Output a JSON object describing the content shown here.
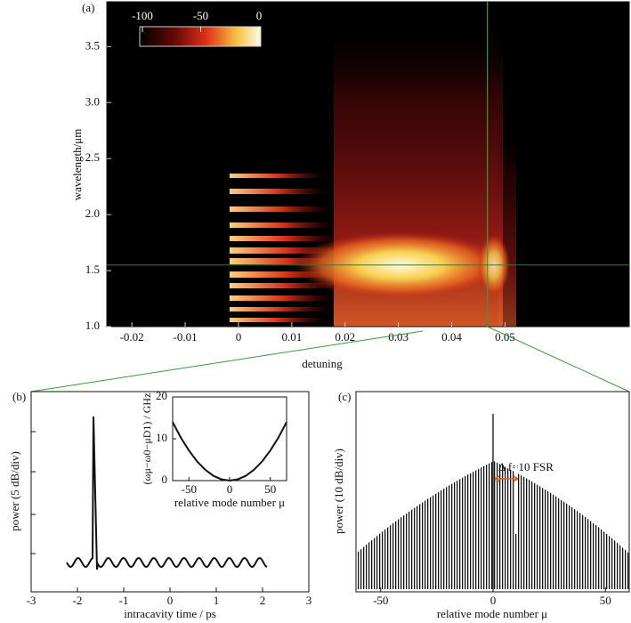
{
  "chart_data": [
    {
      "type": "heatmap",
      "panel_label": "(a)",
      "x_label": "detuning",
      "y_label": "wavelength/μm",
      "xlim": [
        -0.0247,
        0.0733
      ],
      "xticks": [
        -0.02,
        -0.01,
        0,
        0.01,
        0.02,
        0.03,
        0.04,
        0.05
      ],
      "ylim": [
        1.0,
        3.9
      ],
      "yticks": [
        {
          "value": 1.0,
          "label": "1.0"
        },
        1.5,
        {
          "value": 2.0,
          "label": "2.0"
        },
        2.5,
        {
          "value": 3.0,
          "label": "3.0"
        },
        3.5
      ],
      "colorbar": {
        "lim": [
          -100,
          0
        ],
        "ticks": [
          -100,
          -50,
          0
        ]
      },
      "marker_x": 0.0467,
      "marker_y": 1.55
    },
    {
      "type": "trace",
      "panel_label": "(b)",
      "x_label": "intracavity time / ps",
      "y_label": "power (5 dB/div)",
      "xlim": [
        -3,
        3
      ],
      "xticks": [
        -3,
        -2,
        -1,
        0,
        1,
        2,
        3
      ],
      "inset": {
        "type": "line",
        "x_label": "relative mode number μ",
        "y_label": "(ωμ−ω0−μD1) / GHz",
        "xlim": [
          -70,
          70
        ],
        "xticks": [
          -50,
          0,
          50
        ],
        "ylim": [
          0,
          20
        ],
        "yticks": [
          0,
          10,
          20
        ],
        "x": [
          -70,
          -60,
          -50,
          -40,
          -30,
          -20,
          -10,
          0,
          10,
          20,
          30,
          40,
          50,
          60,
          70
        ],
        "values": [
          14,
          10.3,
          7.2,
          4.6,
          2.6,
          1.15,
          0.3,
          0,
          0.3,
          1.15,
          2.6,
          4.6,
          7.2,
          10.3,
          14
        ]
      }
    },
    {
      "type": "comb",
      "panel_label": "(c)",
      "x_label": "relative mode number μ",
      "y_label": "power (10 dB/div)",
      "xlim": [
        -61,
        60.6
      ],
      "xticks": [
        -50,
        0,
        50
      ],
      "annotation": "Δ f=10 FSR"
    }
  ]
}
